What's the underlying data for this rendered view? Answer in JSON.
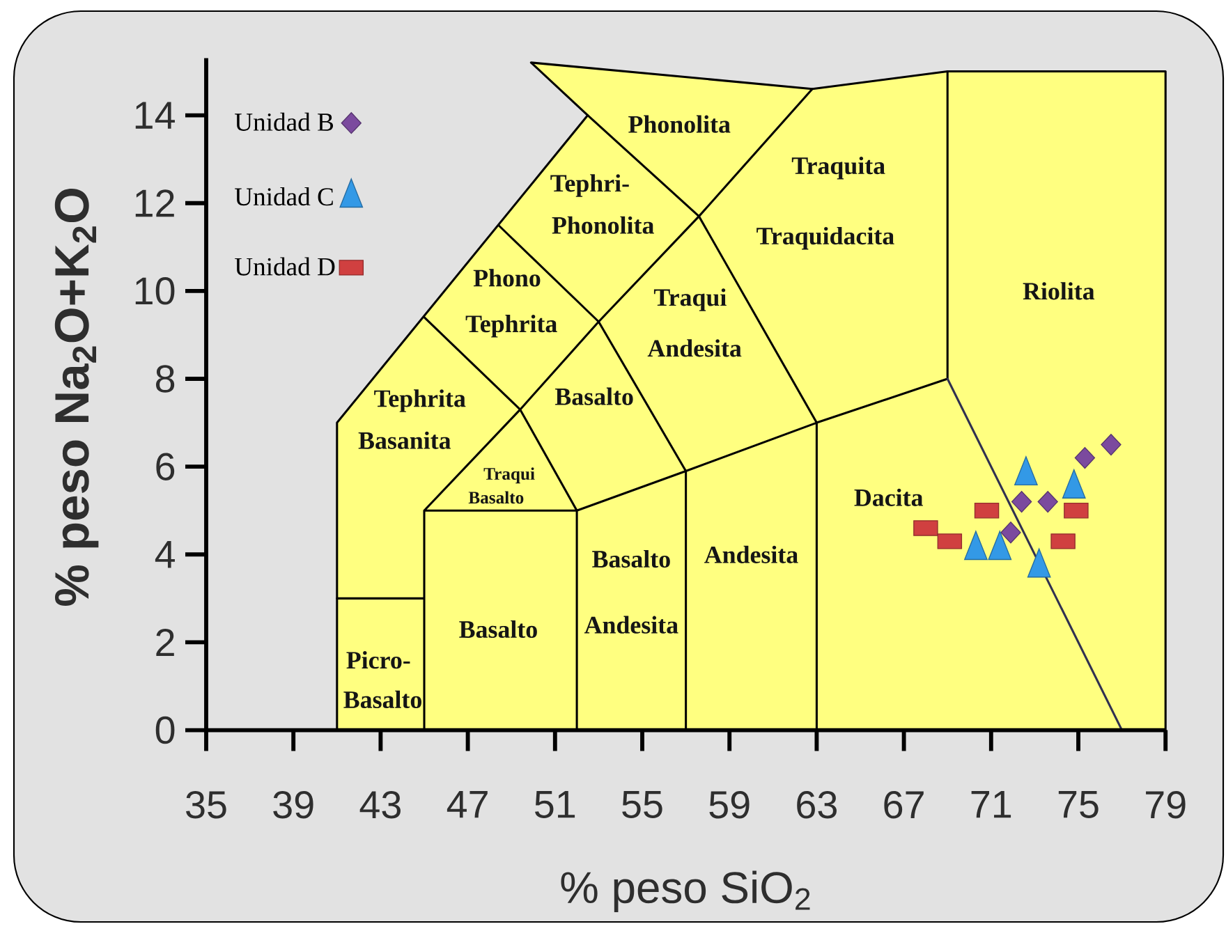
{
  "chart_data": {
    "type": "scatter",
    "xlabel": "% peso SiO$_{2}$",
    "ylabel": "% peso Na$_{2}$O+K$_{2}$O",
    "xlim": [
      35,
      79
    ],
    "ylim": [
      0,
      15.3
    ],
    "xticks": [
      35,
      39,
      43,
      47,
      51,
      55,
      59,
      63,
      67,
      71,
      75,
      79
    ],
    "yticks": [
      0,
      2,
      4,
      6,
      8,
      10,
      12,
      14
    ],
    "legend": "top left",
    "series": [
      {
        "type": "area",
        "color": "#ffff80",
        "x": [
          41,
          41,
          52.5,
          49.9,
          62.8,
          69,
          79,
          79
        ],
        "values": [
          0,
          7,
          14,
          15.2,
          14.6,
          15,
          15,
          0
        ]
      },
      {
        "type": "line",
        "color": "#000000",
        "x": [
          52.5,
          57.6,
          62.8,
          null,
          57.6,
          63,
          69,
          69,
          null,
          57.6,
          53,
          49.4,
          45,
          null,
          48.4,
          53,
          57,
          57,
          null,
          45,
          49.4,
          52,
          57,
          63,
          null,
          41,
          45,
          null,
          45,
          45,
          52,
          52,
          null,
          63,
          63
        ],
        "values": [
          14,
          11.7,
          14.6,
          null,
          11.7,
          7,
          8,
          15,
          null,
          11.7,
          9.3,
          7.3,
          5,
          null,
          11.5,
          9.3,
          5.9,
          0,
          null,
          9.4,
          7.3,
          5,
          5.9,
          7,
          null,
          3,
          3,
          null,
          0,
          5,
          5,
          0,
          null,
          0,
          7
        ]
      },
      {
        "type": "line",
        "color": "#303050",
        "x": [
          69,
          77
        ],
        "values": [
          8,
          0
        ]
      },
      {
        "name": "Unidad B",
        "color": "#7b4a9e",
        "marker": "diamond",
        "x": [
          76.5,
          75.3,
          72.4,
          73.6,
          71.9
        ],
        "values": [
          6.5,
          6.2,
          5.2,
          5.2,
          4.5
        ]
      },
      {
        "name": "Unidad C",
        "color": "#3399e6",
        "marker": "triangle",
        "x": [
          72.6,
          74.8,
          70.3,
          71.4,
          73.2
        ],
        "values": [
          5.8,
          5.5,
          4.1,
          4.1,
          3.7
        ]
      },
      {
        "name": "Unidad D",
        "color": "#d04040",
        "marker": "square",
        "x": [
          68.0,
          69.1,
          70.8,
          74.9,
          74.3
        ],
        "values": [
          4.6,
          4.3,
          5.0,
          5.0,
          4.3
        ]
      }
    ],
    "annotations": [
      "Phonolita",
      "Tephri-",
      "Phonolita",
      "Traquita",
      "Traquidacita",
      "Riolita",
      "Phono",
      "Traqui",
      "Tephrita",
      "Andesita",
      "Basalto",
      "Tephrita",
      "Basanita",
      "Traqui",
      "Basalto",
      "Dacita",
      "Basalto",
      "Andesita",
      "Andesita",
      "Basalto",
      "Picro-",
      "Basalto"
    ]
  }
}
